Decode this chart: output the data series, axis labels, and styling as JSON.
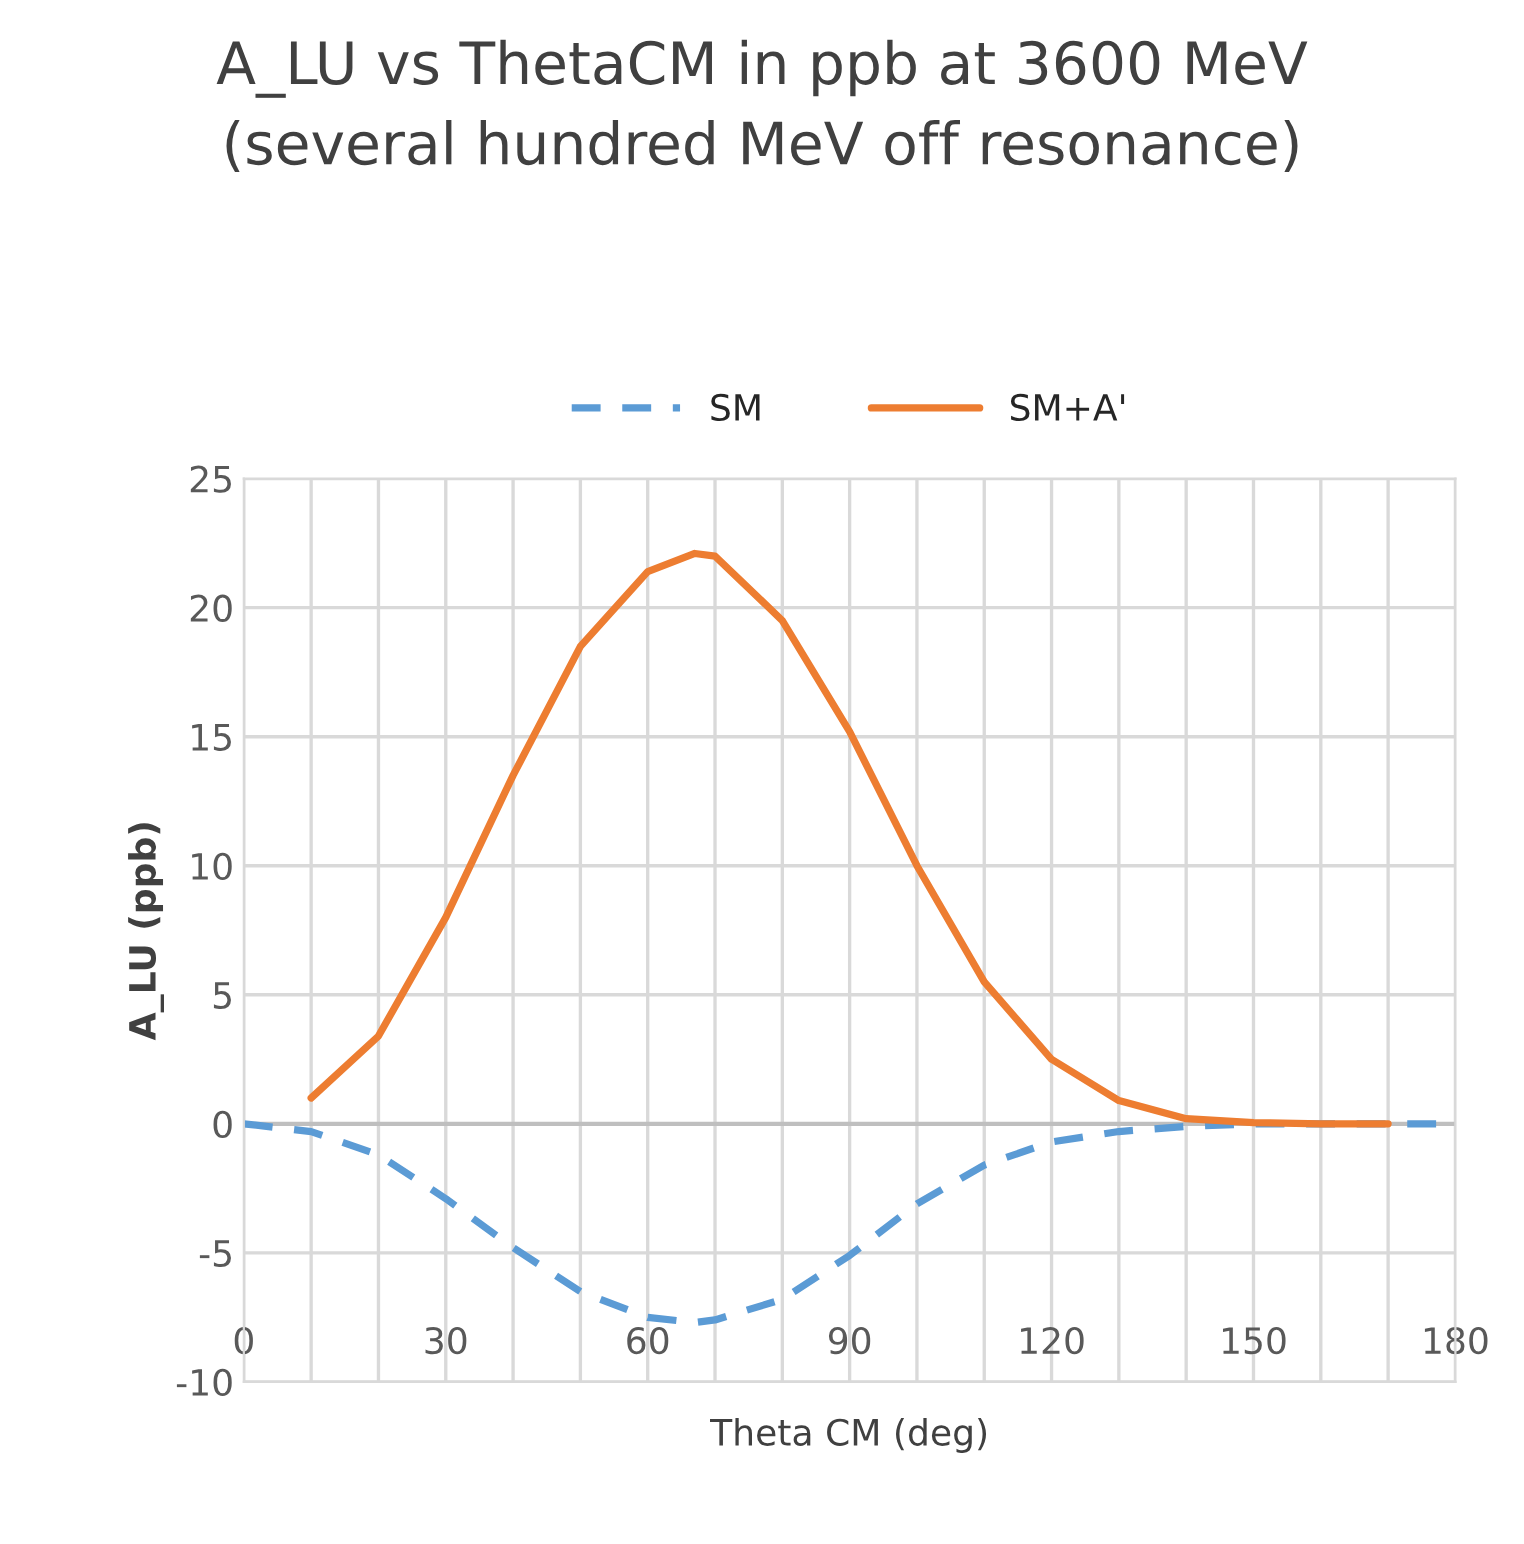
{
  "chart_data": {
    "type": "line",
    "title": "A_LU vs ThetaCM in ppb at 3600 MeV\n(several hundred MeV off resonance)",
    "xlabel": "Theta CM (deg)",
    "ylabel": "A_LU (ppb)",
    "series": [
      {
        "name": "SM",
        "color": "#5b9bd5",
        "line_style": "dashed",
        "x": [
          0,
          10,
          20,
          30,
          40,
          50,
          60,
          67,
          70,
          80,
          90,
          100,
          110,
          120,
          130,
          140,
          150,
          160,
          170,
          180
        ],
        "values": [
          0,
          -0.3,
          -1.2,
          -2.9,
          -4.8,
          -6.5,
          -7.5,
          -7.7,
          -7.6,
          -6.8,
          -5.1,
          -3.1,
          -1.6,
          -0.7,
          -0.3,
          -0.1,
          0,
          0,
          0,
          0
        ]
      },
      {
        "name": "SM+A'",
        "color": "#ed7d31",
        "line_style": "solid",
        "x": [
          10,
          20,
          30,
          40,
          50,
          60,
          67,
          70,
          80,
          90,
          100,
          110,
          120,
          130,
          140,
          150,
          160,
          170
        ],
        "values": [
          1.0,
          3.4,
          8.0,
          13.5,
          18.5,
          21.4,
          22.1,
          22.0,
          19.5,
          15.2,
          10.0,
          5.5,
          2.5,
          0.9,
          0.2,
          0.05,
          0,
          0
        ]
      }
    ],
    "xlim": [
      0,
      180
    ],
    "xticks": [
      0,
      {
        "value": 10,
        "label": null
      },
      {
        "value": 20,
        "label": null
      },
      30,
      {
        "value": 40,
        "label": null
      },
      {
        "value": 50,
        "label": null
      },
      60,
      {
        "value": 70,
        "label": null
      },
      {
        "value": 80,
        "label": null
      },
      90,
      {
        "value": 100,
        "label": null
      },
      {
        "value": 110,
        "label": null
      },
      120,
      {
        "value": 130,
        "label": null
      },
      {
        "value": 140,
        "label": null
      },
      150,
      {
        "value": 160,
        "label": null
      },
      {
        "value": 170,
        "label": null
      },
      180
    ],
    "ylim": [
      -10,
      25
    ],
    "yticks": [
      -10,
      -5,
      0,
      5,
      10,
      15,
      20,
      25
    ],
    "grid": true,
    "legend": "top",
    "marker": "none"
  }
}
